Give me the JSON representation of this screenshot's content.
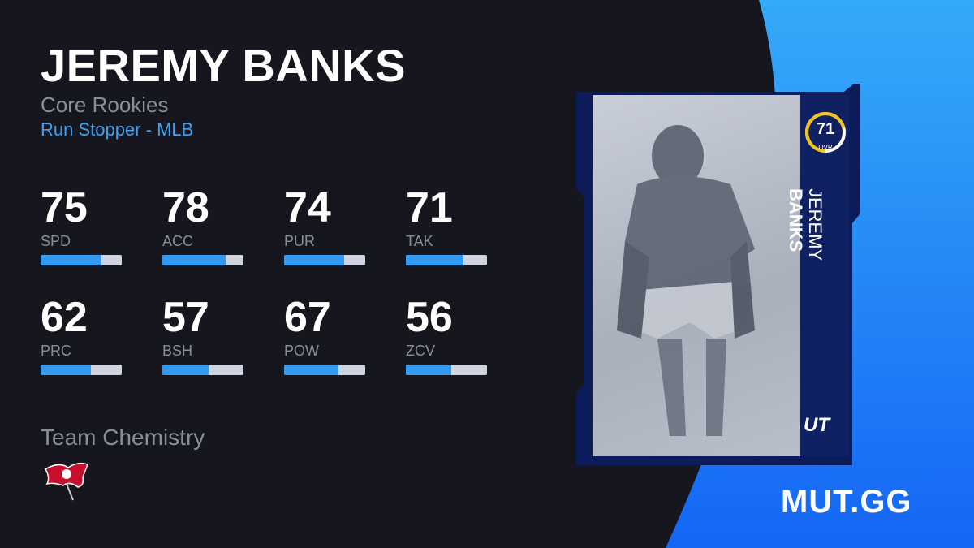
{
  "player": {
    "name": "JEREMY BANKS",
    "first_name": "JEREMY",
    "last_name": "BANKS",
    "program": "Core Rookies",
    "archetype": "Run Stopper - MLB",
    "ovr": 71,
    "ovr_label": "OVR",
    "card_badge": "UT"
  },
  "stats": [
    {
      "value": "75",
      "label": "SPD",
      "pct": 75
    },
    {
      "value": "78",
      "label": "ACC",
      "pct": 78
    },
    {
      "value": "74",
      "label": "PUR",
      "pct": 74
    },
    {
      "value": "71",
      "label": "TAK",
      "pct": 71
    },
    {
      "value": "62",
      "label": "PRC",
      "pct": 62
    },
    {
      "value": "57",
      "label": "BSH",
      "pct": 57
    },
    {
      "value": "67",
      "label": "POW",
      "pct": 67
    },
    {
      "value": "56",
      "label": "ZCV",
      "pct": 56
    }
  ],
  "team_chemistry": {
    "label": "Team Chemistry",
    "team_icon": "buccaneers-flag-icon"
  },
  "brand": "MUT.GG",
  "colors": {
    "background": "#16171e",
    "accent_blue": "#3da2f3",
    "bar_fill": "#3499f1",
    "card_navy": "#0f2163",
    "ovr_ring": "#f2c318"
  }
}
